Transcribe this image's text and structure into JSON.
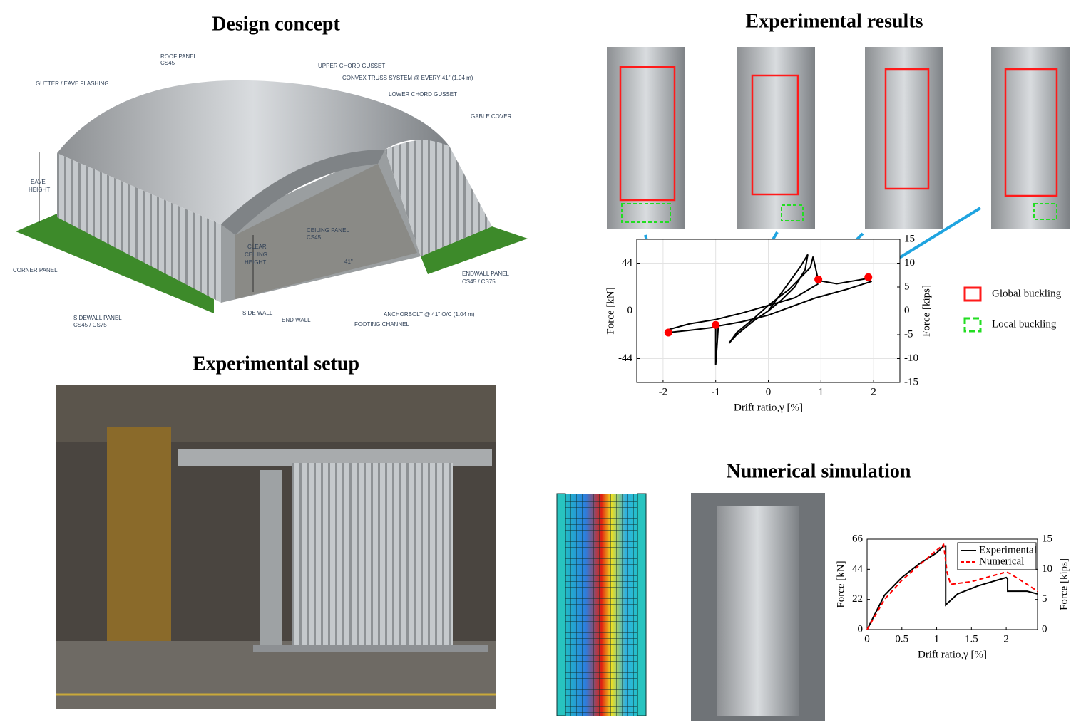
{
  "design_concept": {
    "title": "Design concept",
    "labels": [
      "ROOF PANEL",
      "CS45",
      "GUTTER / EAVE FLASHING",
      "UPPER CHORD GUSSET",
      "CONVEX TRUSS SYSTEM @ EVERY 41\" (1.04 m)",
      "LOWER CHORD GUSSET",
      "GABLE COVER",
      "EAVE",
      "HEIGHT",
      "CEILING PANEL",
      "CS45",
      "CLEAR",
      "CEILING",
      "HEIGHT",
      "41\"",
      "CORNER PANEL",
      "ENDWALL PANEL",
      "CS45 / CS75",
      "SIDEWALL PANEL",
      "CS45 / CS75",
      "SIDE WALL",
      "END WALL",
      "ANCHORBOLT @ 41\" O/C (1.04 m)",
      "FOOTING CHANNEL"
    ]
  },
  "experimental_setup": {
    "title": "Experimental setup"
  },
  "experimental_results": {
    "title": "Experimental results",
    "legend": [
      "Global buckling",
      "Local buckling"
    ]
  },
  "numerical_simulation": {
    "title": "Numerical simulation"
  },
  "chart_data": [
    {
      "type": "line",
      "xlabel": "Drift ratio,γ [%]",
      "ylabel": "Force [kN]",
      "y2label": "Force [kips]",
      "xlim": [
        -2.5,
        2.5
      ],
      "xticks": [
        -2,
        -1,
        0,
        1,
        2
      ],
      "ylim": [
        -66,
        66
      ],
      "yticks": [
        -44,
        0,
        44
      ],
      "y2lim": [
        -15,
        15
      ],
      "y2ticks": [
        -15,
        -10,
        -5,
        0,
        5,
        10,
        15
      ],
      "grid": true,
      "curve": {
        "color": "#000000",
        "x": [
          0,
          0.25,
          0.5,
          0.7,
          0.75,
          0.6,
          0.3,
          0,
          -0.3,
          -0.6,
          -0.75,
          -0.6,
          -0.3,
          0,
          0.4,
          0.8,
          0.85,
          0.95,
          1.3,
          1.9,
          1.95,
          1.5,
          0.9,
          0.5,
          0,
          -0.5,
          -0.95,
          -1.0,
          -1.0,
          -1.5,
          -1.9,
          -1.95,
          -1.5,
          -1.0,
          -0.5,
          0,
          0.5,
          0.95
        ],
        "values": [
          0,
          10,
          22,
          38,
          52,
          40,
          20,
          0,
          -10,
          -22,
          -30,
          -20,
          -8,
          5,
          20,
          40,
          50,
          28,
          25,
          30,
          27,
          20,
          12,
          5,
          -4,
          -10,
          -14,
          -50,
          -15,
          -18,
          -20,
          -18,
          -12,
          -8,
          -2,
          5,
          12,
          25
        ]
      },
      "markers": {
        "color": "#ff0000",
        "x": [
          -1.9,
          -1.0,
          0.95,
          1.9
        ],
        "values": [
          -20,
          -13,
          29,
          31
        ]
      }
    },
    {
      "type": "line",
      "xlabel": "Drift ratio,γ [%]",
      "ylabel": "Force [kN]",
      "y2label": "Force [kips]",
      "xlim": [
        0,
        2.45
      ],
      "xticks": [
        0,
        0.5,
        1,
        1.5,
        2
      ],
      "ylim": [
        0,
        66
      ],
      "yticks": [
        0,
        22,
        44,
        66
      ],
      "y2lim": [
        0,
        15
      ],
      "y2ticks": [
        0,
        5,
        10,
        15
      ],
      "grid": false,
      "legend": "upper right",
      "series": [
        {
          "name": "Experimental",
          "color": "#000000",
          "dash": false,
          "x": [
            0,
            0.25,
            0.5,
            0.75,
            1.0,
            1.1,
            1.13,
            1.13,
            1.3,
            1.6,
            2.0,
            2.02,
            2.02,
            2.3,
            2.45
          ],
          "values": [
            0,
            25,
            38,
            48,
            56,
            61,
            61,
            18,
            26,
            32,
            38,
            37,
            28,
            28,
            26
          ]
        },
        {
          "name": "Numerical",
          "color": "#ff0000",
          "dash": true,
          "x": [
            0,
            0.25,
            0.5,
            0.75,
            1.0,
            1.1,
            1.15,
            1.2,
            1.5,
            2.0,
            2.05,
            2.3,
            2.45
          ],
          "values": [
            0,
            22,
            36,
            47,
            58,
            62,
            42,
            33,
            35,
            42,
            41,
            33,
            28
          ]
        }
      ]
    }
  ]
}
